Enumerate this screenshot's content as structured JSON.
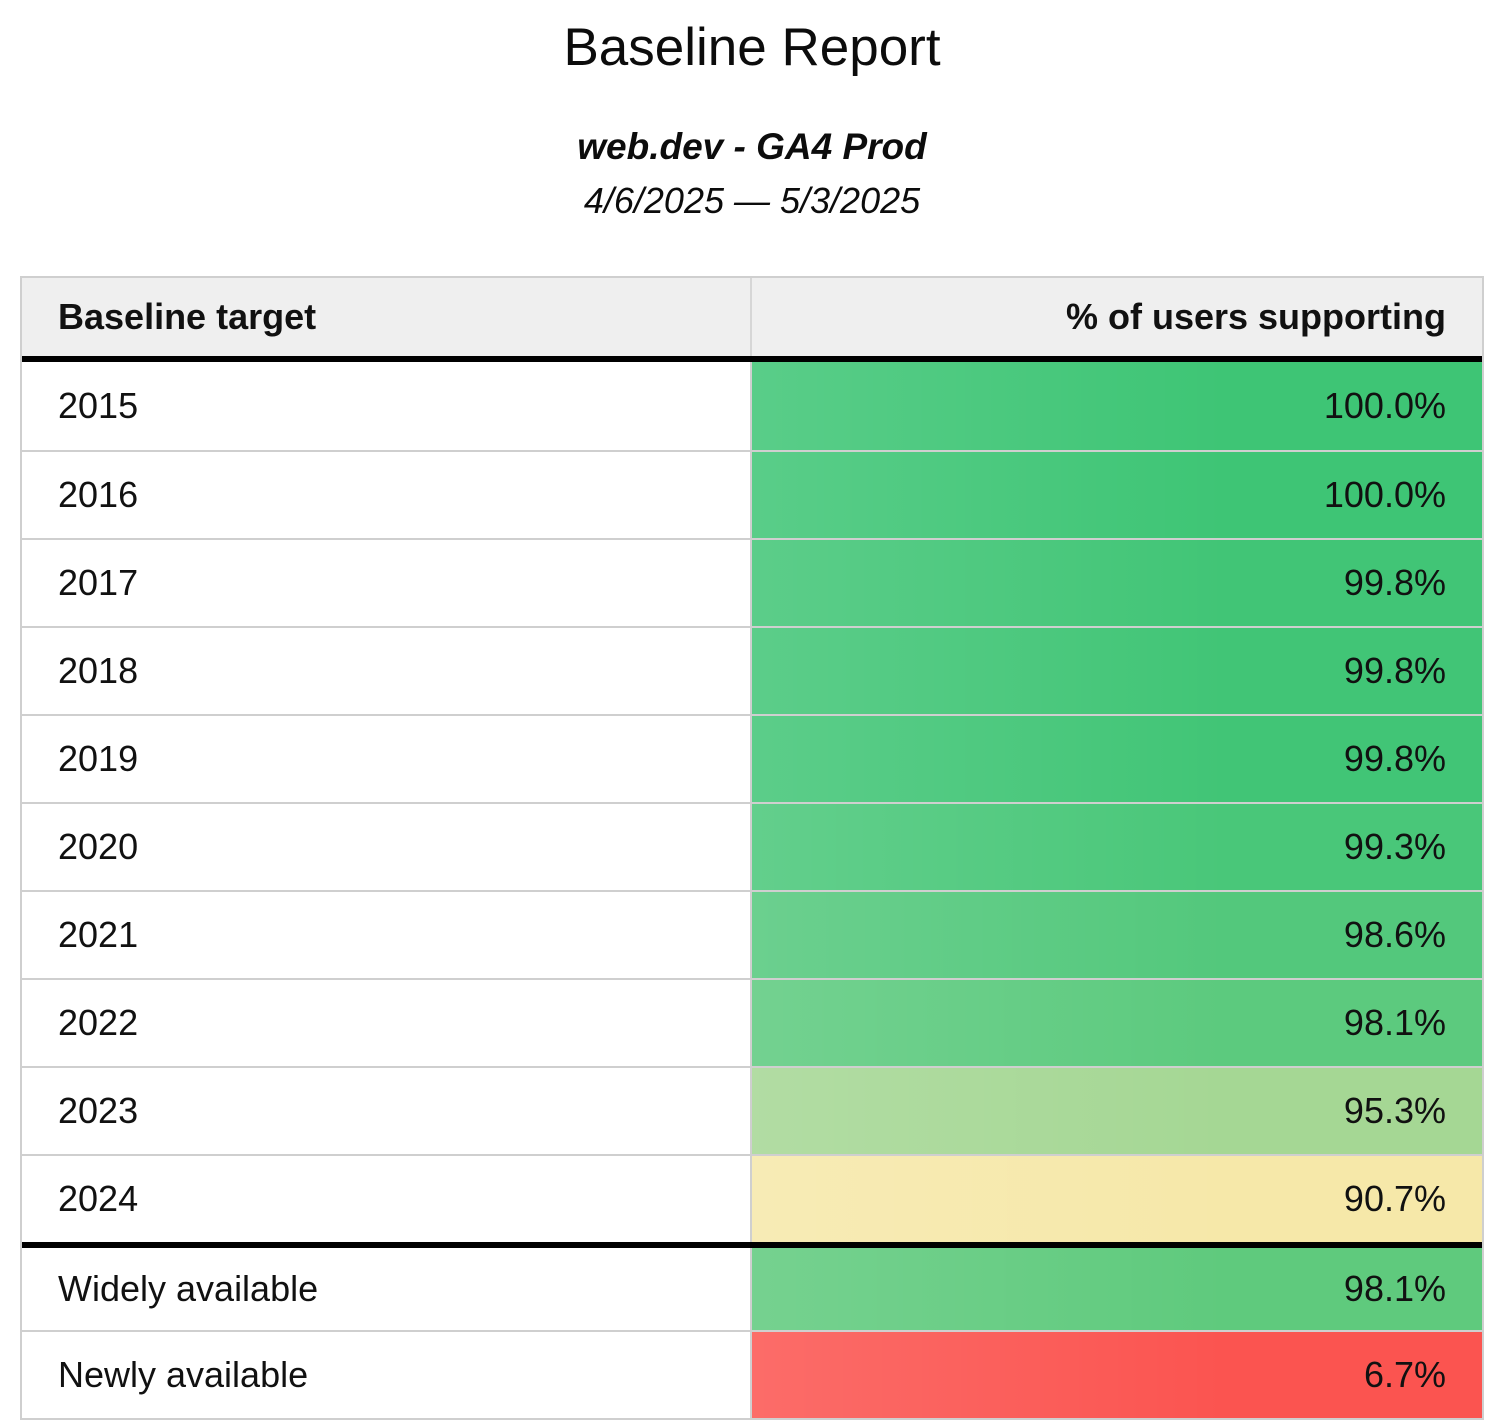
{
  "page": {
    "title": "Baseline Report",
    "subtitle": "web.dev - GA4 Prod",
    "date_range": "4/6/2025 — 5/3/2025"
  },
  "table": {
    "header": {
      "baseline_target": "Baseline target",
      "percent_supporting": "% of users supporting"
    },
    "groups": [
      {
        "name": "baseline-years",
        "rows": [
          {
            "label": "2015",
            "value": "100.0%",
            "color": "#3ec575"
          },
          {
            "label": "2016",
            "value": "100.0%",
            "color": "#3ec575"
          },
          {
            "label": "2017",
            "value": "99.8%",
            "color": "#41c576"
          },
          {
            "label": "2018",
            "value": "99.8%",
            "color": "#41c576"
          },
          {
            "label": "2019",
            "value": "99.8%",
            "color": "#41c576"
          },
          {
            "label": "2020",
            "value": "99.3%",
            "color": "#49c779"
          },
          {
            "label": "2021",
            "value": "98.6%",
            "color": "#53c87c"
          },
          {
            "label": "2022",
            "value": "98.1%",
            "color": "#5cca7e"
          },
          {
            "label": "2023",
            "value": "95.3%",
            "color": "#a5d794"
          },
          {
            "label": "2024",
            "value": "90.7%",
            "color": "#f6e8a9"
          }
        ]
      },
      {
        "name": "availability-summary",
        "rows": [
          {
            "label": "Widely available",
            "value": "98.1%",
            "color": "#5fca7d"
          },
          {
            "label": "Newly available",
            "value": "6.7%",
            "color": "#fb5450"
          }
        ]
      }
    ]
  },
  "chart_data": {
    "type": "table",
    "title": "Baseline Report",
    "subtitle": "web.dev - GA4 Prod",
    "date_range": "4/6/2025 — 5/3/2025",
    "columns": [
      "Baseline target",
      "% of users supporting"
    ],
    "rows": [
      [
        "2015",
        100.0
      ],
      [
        "2016",
        100.0
      ],
      [
        "2017",
        99.8
      ],
      [
        "2018",
        99.8
      ],
      [
        "2019",
        99.8
      ],
      [
        "2020",
        99.3
      ],
      [
        "2021",
        98.6
      ],
      [
        "2022",
        98.1
      ],
      [
        "2023",
        95.3
      ],
      [
        "2024",
        90.7
      ],
      [
        "Widely available",
        98.1
      ],
      [
        "Newly available",
        6.7
      ]
    ],
    "value_unit": "%",
    "layout_hints": {
      "value_alignment": "right",
      "conditional_formatting": "green-high / yellow-mid / red-low color scale",
      "thick_divider_after_rows": [
        "header",
        "2024"
      ]
    },
    "colors": {
      "high": "#3ec575",
      "mid": "#f6e8a9",
      "low": "#fb5450",
      "header_background": "#efefef",
      "grid_line": "#cfcfcf",
      "section_divider": "#000000"
    }
  }
}
